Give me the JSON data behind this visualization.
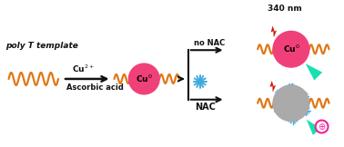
{
  "bg_color": "#ffffff",
  "orange_wave_color": "#e07818",
  "pink_ball_color": "#f0407a",
  "gray_ball_color": "#aaaaaa",
  "cyan_flake_color": "#40aadd",
  "arrow_color": "#111111",
  "text_color": "#111111",
  "red_lightning_color": "#cc1100",
  "cyan_lightning_color": "#00ddaa",
  "pink_circle_color": "#ee2299",
  "label_poly_T": "poly T template",
  "label_cu2plus": "Cu$^{2+}$",
  "label_ascorbic": "Ascorbic acid",
  "label_cu0": "Cu$^{0}$",
  "label_no_nac": "no NAC",
  "label_nac": "NAC",
  "label_340nm": "340 nm",
  "wave_lw": 1.6,
  "fig_w": 3.78,
  "fig_h": 1.62,
  "dpi": 100
}
